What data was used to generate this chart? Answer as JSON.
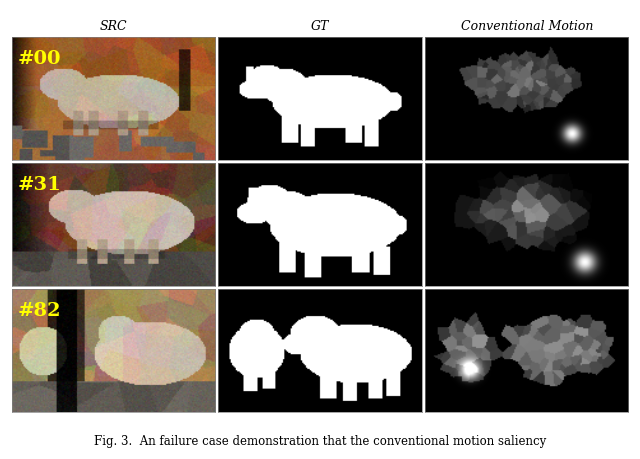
{
  "title_row": [
    "SRC",
    "GT",
    "Conventional Motion"
  ],
  "row_labels": [
    "#00",
    "#31",
    "#82"
  ],
  "label_color": "#FFFF00",
  "caption": "Fig. 3.  An failure case demonstration that the conventional motion saliency",
  "fig_width": 6.4,
  "fig_height": 4.6,
  "background_color": "#ffffff",
  "header_fontsize": 9,
  "label_fontsize": 14,
  "caption_fontsize": 8.5
}
